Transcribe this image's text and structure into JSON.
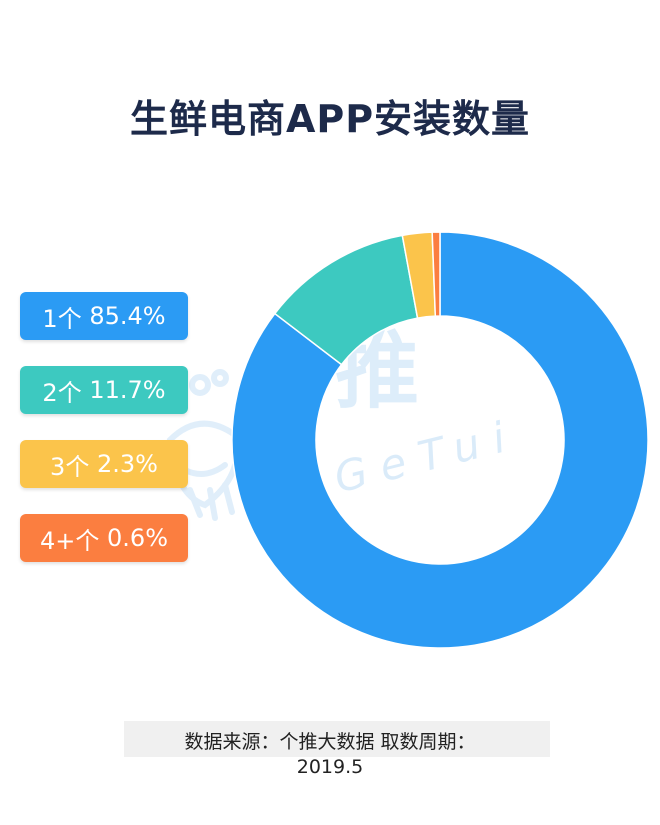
{
  "chart_data": {
    "type": "pie",
    "title": "生鲜电商APP安装数量",
    "donut": true,
    "slices": [
      {
        "label": "1个",
        "value": 85.4,
        "display": "85.4%",
        "color": "#2b9bf4"
      },
      {
        "label": "2个",
        "value": 11.7,
        "display": "11.7%",
        "color": "#3dc9c0"
      },
      {
        "label": "3个",
        "value": 2.3,
        "display": "2.3%",
        "color": "#fbc44b"
      },
      {
        "label": "4+个",
        "value": 0.6,
        "display": "0.6%",
        "color": "#fb7e40"
      }
    ],
    "legend_position": "left"
  },
  "watermark": {
    "brand_cn": "个推",
    "brand_en": "GeTui"
  },
  "source": {
    "line1": "数据来源：个推大数据   取数周期：",
    "line2": "2019.5"
  }
}
